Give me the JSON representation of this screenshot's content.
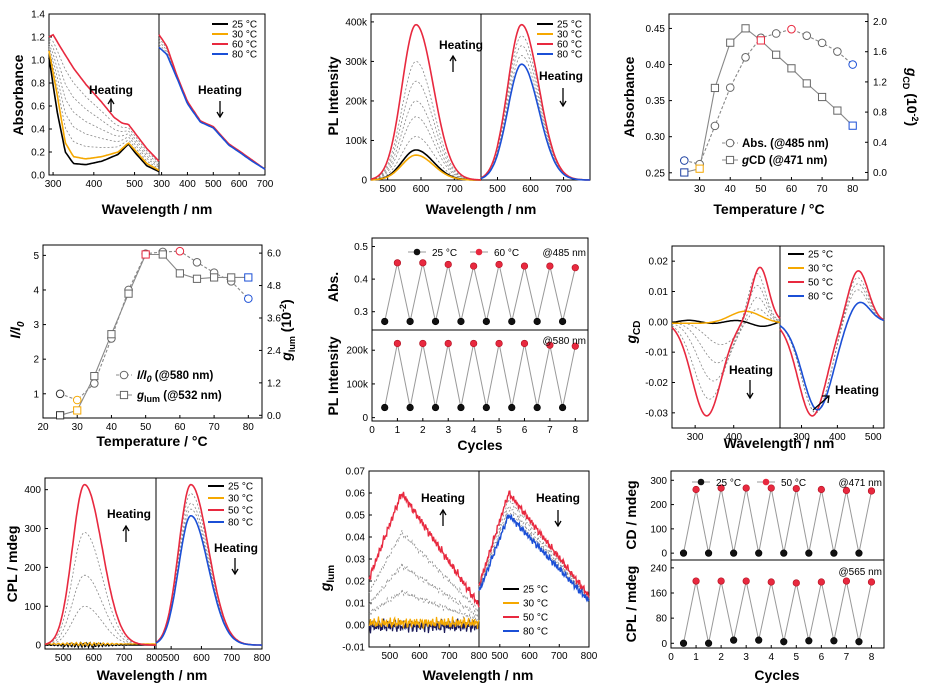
{
  "temps4": [
    "25 °C",
    "30 °C",
    "60 °C",
    "80 °C"
  ],
  "temps4b": [
    "25 °C",
    "30 °C",
    "50 °C",
    "80 °C"
  ],
  "colors": {
    "t25": "#000000",
    "t30": "#f5a800",
    "hot": "#e8293f",
    "t80": "#1b4fd6",
    "grey": "#888888"
  },
  "heating": "Heating",
  "panels": {
    "a": {
      "ylabel": "Absorbance",
      "xlabel": "Wavelength / nm",
      "xticks": [
        "300",
        "400",
        "500",
        "300",
        "400",
        "500",
        "600",
        "700"
      ],
      "yticks": [
        "0.0",
        "0.2",
        "0.4",
        "0.6",
        "0.8",
        "1.0",
        "1.2",
        "1.4"
      ]
    },
    "b": {
      "ylabel": "PL Intensity",
      "xlabel": "Wavelength / nm",
      "xticks": [
        "500",
        "600",
        "700",
        "500",
        "600",
        "700"
      ],
      "yticks": [
        "0",
        "100k",
        "200k",
        "300k",
        "400k"
      ]
    },
    "c": {
      "ylabel": "Absorbance",
      "ylabel2_main": "g",
      "ylabel2_sub": "CD",
      "ylabel2_tail": " (10",
      "ylabel2_sup": "-2",
      "ylabel2_end": ")",
      "xlabel": "Temperature / °C",
      "xticks": [
        "30",
        "40",
        "50",
        "60",
        "70",
        "80"
      ],
      "yticks": [
        "0.25",
        "0.30",
        "0.35",
        "0.40",
        "0.45"
      ],
      "yticks2": [
        "0.0",
        "0.4",
        "0.8",
        "1.2",
        "1.6",
        "2.0"
      ],
      "legend1": "Abs. (@485 nm)",
      "legend2_pre": "g",
      "legend2": "CD (@471 nm)"
    },
    "d": {
      "ylabel_main": "I/I",
      "ylabel_sub": "0",
      "ylabel2_main": "g",
      "ylabel2_sub": "lum",
      "ylabel2_tail": " (10",
      "ylabel2_sup": "-2",
      "ylabel2_end": ")",
      "xlabel": "Temperature / °C",
      "xticks": [
        "20",
        "30",
        "40",
        "50",
        "60",
        "70",
        "80"
      ],
      "yticks": [
        "1",
        "2",
        "3",
        "4",
        "5"
      ],
      "yticks2": [
        "0.0",
        "1.2",
        "2.4",
        "3.6",
        "4.8",
        "6.0"
      ],
      "legend1_main": "I/I",
      "legend1_sub": "0",
      "legend1_tail": " (@580 nm)",
      "legend2_pre": "g",
      "legend2_sub": "lum",
      "legend2": " (@532 nm)"
    },
    "e": {
      "ylabel_top": "Abs.",
      "ylabel_bot": "PL Intensity",
      "xlabel": "Cycles",
      "xticks": [
        "0",
        "1",
        "2",
        "3",
        "4",
        "5",
        "6",
        "7",
        "8"
      ],
      "yticks_top": [
        "0.3",
        "0.4",
        "0.5"
      ],
      "yticks_bot": [
        "0",
        "100k",
        "200k"
      ],
      "leg1": "25 °C",
      "leg2": "60 °C",
      "note_top": "@485 nm",
      "note_bot": "@580 nm"
    },
    "f": {
      "ylabel_main": "g",
      "ylabel_sub": "CD",
      "xlabel": "Wavelength / nm",
      "xticks": [
        "300",
        "400",
        "300",
        "400",
        "500"
      ],
      "yticks": [
        "-0.03",
        "-0.02",
        "-0.01",
        "0.00",
        "0.01",
        "0.02"
      ]
    },
    "g": {
      "ylabel": "CPL / mdeg",
      "xlabel": "Wavelength / nm",
      "xticks": [
        "500",
        "600",
        "700",
        "800",
        "500",
        "600",
        "700",
        "800"
      ],
      "yticks": [
        "0",
        "100",
        "200",
        "300",
        "400"
      ]
    },
    "h": {
      "ylabel_main": "g",
      "ylabel_sub": "lum",
      "xlabel": "Wavelength / nm",
      "xticks": [
        "500",
        "600",
        "700",
        "800",
        "500",
        "600",
        "700",
        "800"
      ],
      "yticks": [
        "-0.01",
        "0.00",
        "0.01",
        "0.02",
        "0.03",
        "0.04",
        "0.05",
        "0.06",
        "0.07"
      ]
    },
    "i": {
      "ylabel_top": "CD / mdeg",
      "ylabel_bot": "CPL / mdeg",
      "xlabel": "Cycles",
      "xticks": [
        "0",
        "1",
        "2",
        "3",
        "4",
        "5",
        "6",
        "7",
        "8"
      ],
      "yticks_top": [
        "0",
        "100",
        "200",
        "300"
      ],
      "yticks_bot": [
        "0",
        "80",
        "160",
        "240"
      ],
      "leg1": "25 °C",
      "leg2": "50 °C",
      "note_top": "@471 nm",
      "note_bot": "@565 nm"
    }
  },
  "chart_data": [
    {
      "type": "line",
      "id": "a",
      "title": "",
      "xlabel": "Wavelength / nm",
      "ylabel": "Absorbance",
      "ylim": [
        0,
        1.4
      ],
      "legend": [
        "25 °C",
        "30 °C",
        "60 °C",
        "80 °C"
      ],
      "left_xlim": [
        290,
        560
      ],
      "right_xlim": [
        290,
        700
      ],
      "left_series": {
        "25": [
          [
            290,
            1.02
          ],
          [
            310,
            0.55
          ],
          [
            330,
            0.2
          ],
          [
            350,
            0.1
          ],
          [
            380,
            0.09
          ],
          [
            420,
            0.12
          ],
          [
            460,
            0.18
          ],
          [
            485,
            0.27
          ],
          [
            500,
            0.2
          ],
          [
            530,
            0.08
          ],
          [
            560,
            0.03
          ]
        ],
        "30": [
          [
            290,
            1.08
          ],
          [
            310,
            0.7
          ],
          [
            330,
            0.28
          ],
          [
            350,
            0.16
          ],
          [
            380,
            0.14
          ],
          [
            420,
            0.16
          ],
          [
            460,
            0.2
          ],
          [
            485,
            0.28
          ],
          [
            500,
            0.22
          ],
          [
            530,
            0.1
          ],
          [
            560,
            0.04
          ]
        ],
        "60": [
          [
            290,
            1.2
          ],
          [
            300,
            1.22
          ],
          [
            320,
            1.1
          ],
          [
            350,
            0.93
          ],
          [
            380,
            0.79
          ],
          [
            420,
            0.63
          ],
          [
            450,
            0.5
          ],
          [
            470,
            0.45
          ],
          [
            485,
            0.44
          ],
          [
            500,
            0.37
          ],
          [
            530,
            0.23
          ],
          [
            560,
            0.12
          ]
        ]
      },
      "right_series": {
        "60": [
          [
            290,
            1.22
          ],
          [
            320,
            1.12
          ],
          [
            360,
            0.86
          ],
          [
            400,
            0.64
          ],
          [
            450,
            0.47
          ],
          [
            500,
            0.42
          ],
          [
            520,
            0.37
          ],
          [
            560,
            0.27
          ],
          [
            600,
            0.21
          ],
          [
            650,
            0.13
          ],
          [
            700,
            0.05
          ]
        ],
        "80": [
          [
            290,
            1.11
          ],
          [
            320,
            1.05
          ],
          [
            360,
            0.84
          ],
          [
            400,
            0.62
          ],
          [
            450,
            0.46
          ],
          [
            500,
            0.41
          ],
          [
            520,
            0.36
          ],
          [
            560,
            0.26
          ],
          [
            600,
            0.2
          ],
          [
            650,
            0.12
          ],
          [
            700,
            0.05
          ]
        ]
      }
    },
    {
      "type": "line",
      "id": "b",
      "title": "",
      "xlabel": "Wavelength / nm",
      "ylabel": "PL Intensity",
      "ylim": [
        0,
        420000
      ],
      "legend": [
        "25 °C",
        "30 °C",
        "60 °C",
        "80 °C"
      ],
      "xlim": [
        450,
        800
      ],
      "left_peaks": {
        "25": 76000,
        "30": 63000,
        "60": 393000
      },
      "left_peak_x": 585,
      "right_peaks": {
        "60": 393000,
        "80": 293000
      },
      "right_peak_x": 573
    },
    {
      "type": "scatter",
      "id": "c",
      "xlabel": "Temperature / °C",
      "ylabel": "Absorbance",
      "y2label": "gCD (10-2)",
      "xlim": [
        20,
        85
      ],
      "ylim": [
        0.24,
        0.47
      ],
      "y2lim": [
        -0.1,
        2.1
      ],
      "abs": [
        [
          25,
          0.267
        ],
        [
          30,
          0.262
        ],
        [
          35,
          0.315
        ],
        [
          40,
          0.368
        ],
        [
          45,
          0.41
        ],
        [
          50,
          0.437
        ],
        [
          55,
          0.443
        ],
        [
          60,
          0.449
        ],
        [
          65,
          0.44
        ],
        [
          70,
          0.43
        ],
        [
          75,
          0.418
        ],
        [
          80,
          0.4
        ]
      ],
      "gcd": [
        [
          25,
          0.0
        ],
        [
          30,
          0.05
        ],
        [
          35,
          1.12
        ],
        [
          40,
          1.72
        ],
        [
          45,
          1.91
        ],
        [
          50,
          1.75
        ],
        [
          55,
          1.56
        ],
        [
          60,
          1.38
        ],
        [
          65,
          1.18
        ],
        [
          70,
          1.0
        ],
        [
          75,
          0.82
        ],
        [
          80,
          0.62
        ]
      ]
    },
    {
      "type": "scatter",
      "id": "d",
      "xlabel": "Temperature / °C",
      "ylabel": "I/I0",
      "y2label": "glum (10-2)",
      "xlim": [
        20,
        85
      ],
      "ylim": [
        0.3,
        5.4
      ],
      "y2lim": [
        -0.1,
        6.6
      ],
      "ratio": [
        [
          25,
          1.0
        ],
        [
          30,
          0.82
        ],
        [
          35,
          1.3
        ],
        [
          40,
          2.6
        ],
        [
          45,
          4.0
        ],
        [
          50,
          5.05
        ],
        [
          55,
          5.1
        ],
        [
          60,
          5.12
        ],
        [
          65,
          4.8
        ],
        [
          70,
          4.5
        ],
        [
          75,
          4.25
        ],
        [
          80,
          3.75
        ]
      ],
      "glum": [
        [
          25,
          0.0
        ],
        [
          30,
          0.18
        ],
        [
          35,
          1.45
        ],
        [
          40,
          3.0
        ],
        [
          45,
          4.5
        ],
        [
          50,
          5.95
        ],
        [
          55,
          5.95
        ],
        [
          60,
          5.25
        ],
        [
          65,
          5.05
        ],
        [
          70,
          5.1
        ],
        [
          75,
          5.1
        ],
        [
          80,
          5.1
        ]
      ]
    },
    {
      "type": "line",
      "id": "e",
      "xlabel": "Cycles",
      "ylabel": "Abs. / PL Intensity",
      "x": [
        0.5,
        1,
        1.5,
        2,
        2.5,
        3,
        3.5,
        4,
        4.5,
        5,
        5.5,
        6,
        6.5,
        7,
        7.5,
        8
      ],
      "abs": [
        0.27,
        0.45,
        0.27,
        0.45,
        0.27,
        0.445,
        0.27,
        0.44,
        0.27,
        0.445,
        0.27,
        0.44,
        0.27,
        0.44,
        0.27,
        0.435
      ],
      "pl": [
        30000,
        220000,
        30000,
        220000,
        30000,
        220000,
        30000,
        220000,
        30000,
        220000,
        30000,
        220000,
        30000,
        215000,
        30000,
        212000
      ]
    },
    {
      "type": "line",
      "id": "f",
      "xlabel": "Wavelength / nm",
      "ylabel": "gCD",
      "ylim": [
        -0.035,
        0.025
      ],
      "legend": [
        "25 °C",
        "30 °C",
        "50 °C",
        "80 °C"
      ]
    },
    {
      "type": "line",
      "id": "g",
      "xlabel": "Wavelength / nm",
      "ylabel": "CPL / mdeg",
      "ylim": [
        -10,
        430
      ],
      "legend": [
        "25 °C",
        "30 °C",
        "50 °C",
        "80 °C"
      ],
      "left_peak": {
        "50": 413
      },
      "right_peaks": {
        "50": 413,
        "80": 333
      },
      "peak_x": 565
    },
    {
      "type": "line",
      "id": "h",
      "xlabel": "Wavelength / nm",
      "ylabel": "glum",
      "ylim": [
        -0.01,
        0.07
      ],
      "legend": [
        "25 °C",
        "30 °C",
        "50 °C",
        "80 °C"
      ],
      "left_peak": {
        "50": 0.06
      },
      "right_peaks": {
        "50": 0.06,
        "80": 0.05
      }
    },
    {
      "type": "line",
      "id": "i",
      "xlabel": "Cycles",
      "ylabel": "CD / mdeg, CPL / mdeg",
      "x": [
        0.5,
        1,
        1.5,
        2,
        2.5,
        3,
        3.5,
        4,
        4.5,
        5,
        5.5,
        6,
        6.5,
        7,
        7.5,
        8
      ],
      "cd": [
        0,
        262,
        0,
        268,
        0,
        268,
        0,
        268,
        0,
        266,
        0,
        262,
        0,
        258,
        0,
        256
      ],
      "cpl": [
        0,
        198,
        0,
        198,
        10,
        198,
        10,
        195,
        5,
        192,
        8,
        195,
        8,
        198,
        5,
        195
      ]
    }
  ]
}
